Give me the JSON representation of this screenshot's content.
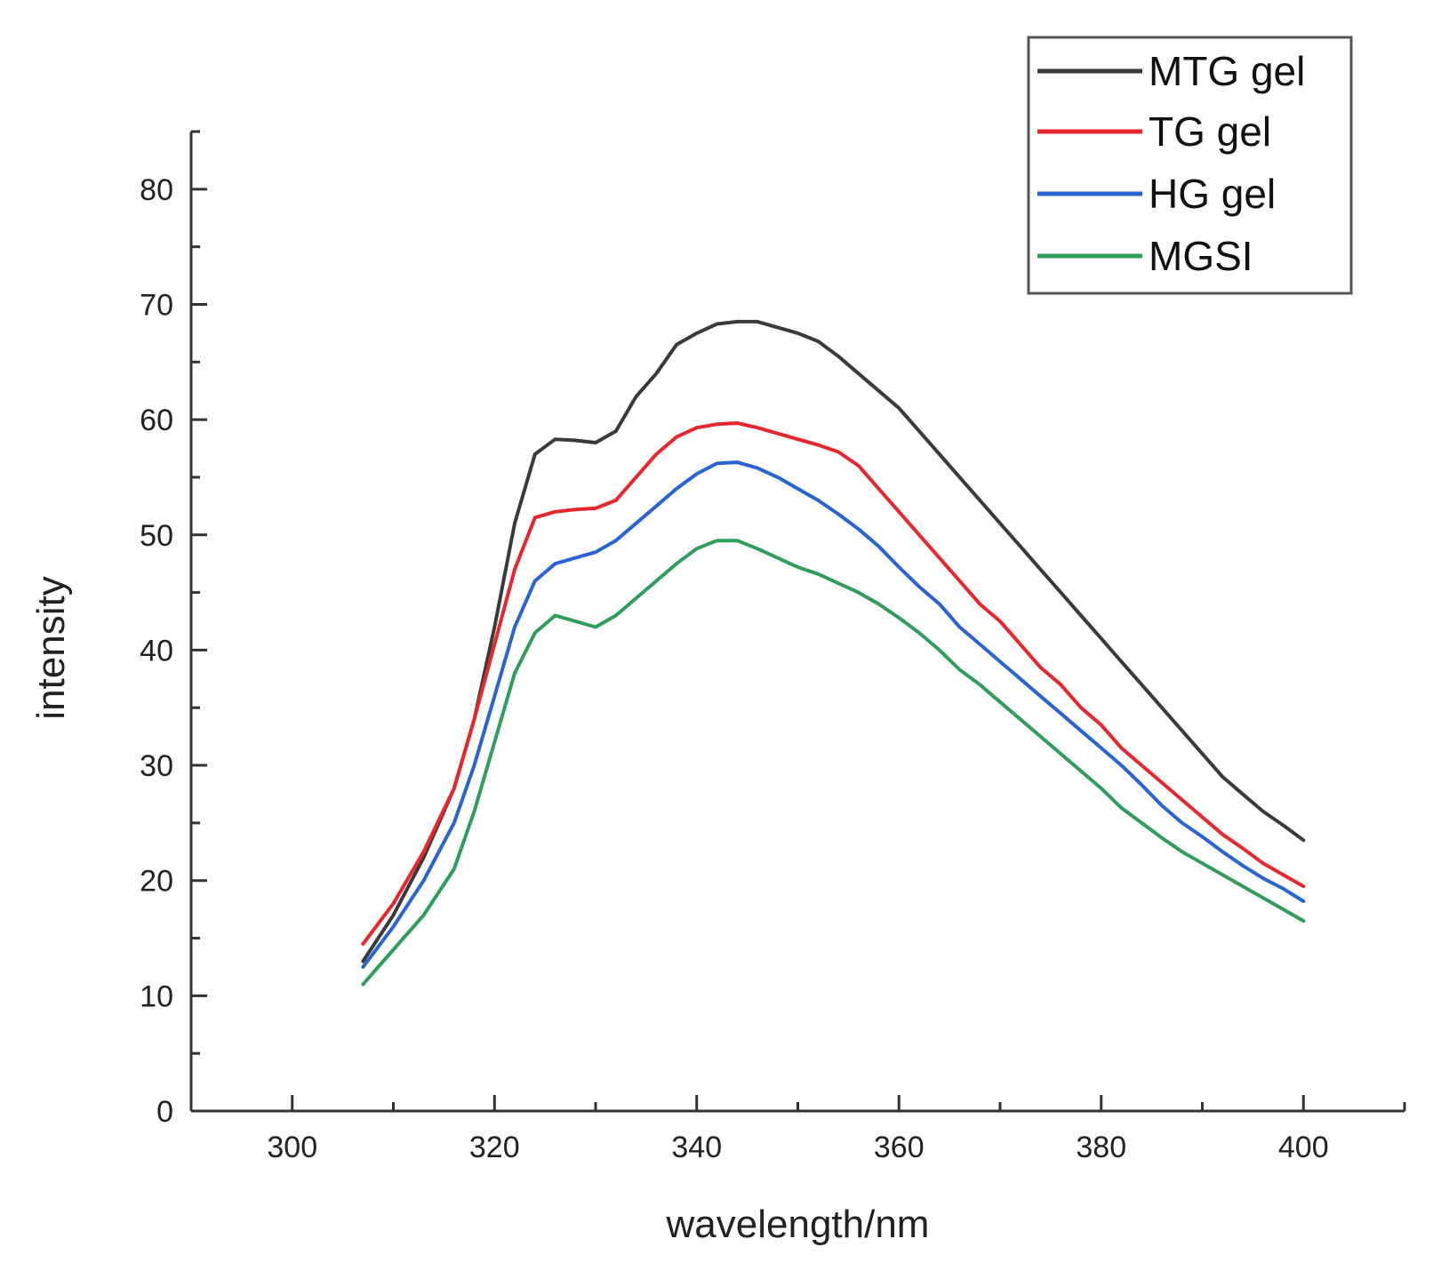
{
  "chart_data": {
    "type": "line",
    "title": "",
    "xlabel": "wavelength/nm",
    "ylabel": "intensity",
    "xlim": [
      290,
      410
    ],
    "ylim": [
      0,
      85
    ],
    "xticks": [
      300,
      320,
      340,
      360,
      380,
      400
    ],
    "yticks": [
      0,
      10,
      20,
      30,
      40,
      50,
      60,
      70,
      80
    ],
    "legend_position": "top-right",
    "series": [
      {
        "name": "MTG gel",
        "color": "#3a3a3a",
        "x": [
          307,
          310,
          313,
          316,
          318,
          320,
          322,
          324,
          326,
          328,
          330,
          332,
          334,
          336,
          338,
          340,
          342,
          344,
          346,
          348,
          350,
          352,
          354,
          356,
          358,
          360,
          362,
          364,
          366,
          368,
          370,
          372,
          374,
          376,
          378,
          380,
          382,
          384,
          386,
          388,
          390,
          392,
          394,
          396,
          398,
          400
        ],
        "y": [
          13,
          17,
          22,
          28,
          34,
          42,
          51,
          57,
          58.3,
          58.2,
          58,
          59,
          62,
          64,
          66.5,
          67.5,
          68.3,
          68.5,
          68.5,
          68,
          67.5,
          66.8,
          65.5,
          64,
          62.5,
          61,
          59,
          57,
          55,
          53,
          51,
          49,
          47,
          45,
          43,
          41,
          39,
          37,
          35,
          33,
          31,
          29,
          27.5,
          26,
          24.8,
          23.5
        ]
      },
      {
        "name": "TG gel",
        "color": "#e8262e",
        "x": [
          307,
          310,
          313,
          316,
          318,
          320,
          322,
          324,
          326,
          328,
          330,
          332,
          334,
          336,
          338,
          340,
          342,
          344,
          346,
          348,
          350,
          352,
          354,
          356,
          358,
          360,
          362,
          364,
          366,
          368,
          370,
          372,
          374,
          376,
          378,
          380,
          382,
          384,
          386,
          388,
          390,
          392,
          394,
          396,
          398,
          400
        ],
        "y": [
          14.5,
          18,
          22.5,
          28,
          34,
          40.5,
          47,
          51.5,
          52,
          52.2,
          52.3,
          53,
          55,
          57,
          58.5,
          59.3,
          59.6,
          59.7,
          59.3,
          58.8,
          58.3,
          57.8,
          57.2,
          56,
          54,
          52,
          50,
          48,
          46,
          44,
          42.5,
          40.5,
          38.5,
          37,
          35,
          33.5,
          31.5,
          30,
          28.5,
          27,
          25.5,
          24,
          22.8,
          21.5,
          20.5,
          19.5
        ]
      },
      {
        "name": "HG gel",
        "color": "#2a63d4",
        "x": [
          307,
          310,
          313,
          316,
          318,
          320,
          322,
          324,
          326,
          328,
          330,
          332,
          334,
          336,
          338,
          340,
          342,
          344,
          346,
          348,
          350,
          352,
          354,
          356,
          358,
          360,
          362,
          364,
          366,
          368,
          370,
          372,
          374,
          376,
          378,
          380,
          382,
          384,
          386,
          388,
          390,
          392,
          394,
          396,
          398,
          400
        ],
        "y": [
          12.5,
          16,
          20,
          25,
          30,
          36,
          42,
          46,
          47.5,
          48,
          48.5,
          49.5,
          51,
          52.5,
          54,
          55.3,
          56.2,
          56.3,
          55.8,
          55,
          54,
          53,
          51.8,
          50.5,
          49,
          47.2,
          45.5,
          44,
          42,
          40.5,
          39,
          37.5,
          36,
          34.5,
          33,
          31.5,
          30,
          28.3,
          26.5,
          25,
          23.8,
          22.5,
          21.3,
          20.2,
          19.3,
          18.2
        ]
      },
      {
        "name": "MGSI",
        "color": "#2e9e5a",
        "x": [
          307,
          310,
          313,
          316,
          318,
          320,
          322,
          324,
          326,
          328,
          330,
          332,
          334,
          336,
          338,
          340,
          342,
          344,
          346,
          348,
          350,
          352,
          354,
          356,
          358,
          360,
          362,
          364,
          366,
          368,
          370,
          372,
          374,
          376,
          378,
          380,
          382,
          384,
          386,
          388,
          390,
          392,
          394,
          396,
          398,
          400
        ],
        "y": [
          11,
          14,
          17,
          21,
          26,
          32,
          38,
          41.5,
          43,
          42.5,
          42,
          43,
          44.5,
          46,
          47.5,
          48.8,
          49.5,
          49.5,
          48.8,
          48,
          47.2,
          46.6,
          45.8,
          45,
          44,
          42.8,
          41.5,
          40,
          38.3,
          37,
          35.5,
          34,
          32.5,
          31,
          29.5,
          28,
          26.3,
          25,
          23.7,
          22.5,
          21.5,
          20.5,
          19.5,
          18.5,
          17.5,
          16.5
        ]
      }
    ]
  }
}
